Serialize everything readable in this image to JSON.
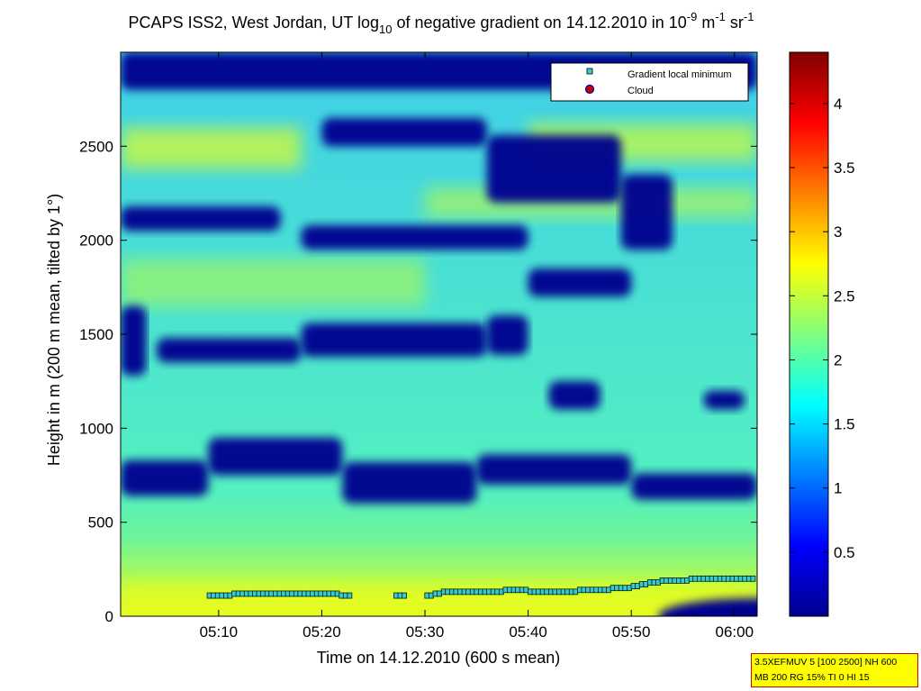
{
  "chart_data": {
    "type": "heatmap",
    "title": {
      "prefix": "PCAPS ISS2, West Jordan, UT log",
      "log_base": "10",
      "middle": " of negative gradient on 14.12.2010 in 10",
      "exp1": "-9",
      "unit1": " m",
      "exp2": "-1",
      "unit2": " sr",
      "exp3": "-1"
    },
    "xlabel": "Time on 14.12.2010 (600 s mean)",
    "ylabel": "Height in m (200 m mean, tilted by 1°)",
    "xlim_minutes": [
      300.5,
      362.2
    ],
    "ylim": [
      0,
      3000
    ],
    "x_ticks": [
      {
        "value": 310,
        "label": "05:10"
      },
      {
        "value": 320,
        "label": "05:20"
      },
      {
        "value": 330,
        "label": "05:30"
      },
      {
        "value": 340,
        "label": "05:40"
      },
      {
        "value": 350,
        "label": "05:50"
      },
      {
        "value": 360,
        "label": "06:00"
      }
    ],
    "y_ticks": [
      0,
      500,
      1000,
      1500,
      2000,
      2500
    ],
    "colorbar": {
      "colormap": "jet",
      "clim": [
        0,
        4.4
      ],
      "ticks": [
        0.5,
        1,
        1.5,
        2,
        2.5,
        3,
        3.5,
        4
      ]
    },
    "legend": {
      "placement": "top-right",
      "entries": [
        {
          "label": "Gradient local minimum",
          "marker": "square",
          "color": "#33cccc"
        },
        {
          "label": "Cloud",
          "marker": "circle",
          "color": "#cc0000"
        }
      ]
    },
    "gradient_local_minimum": [
      {
        "segment": [
          [
            309.1,
            110
          ],
          [
            309.5,
            110
          ],
          [
            309.9,
            110
          ],
          [
            310.3,
            110
          ],
          [
            310.7,
            110
          ],
          [
            311.1,
            110
          ],
          [
            311.5,
            120
          ],
          [
            311.9,
            120
          ],
          [
            312.3,
            120
          ],
          [
            312.7,
            120
          ],
          [
            313.1,
            120
          ],
          [
            313.5,
            120
          ],
          [
            313.9,
            120
          ],
          [
            314.3,
            120
          ],
          [
            314.7,
            120
          ],
          [
            315.1,
            120
          ],
          [
            315.5,
            120
          ],
          [
            315.9,
            120
          ],
          [
            316.3,
            120
          ],
          [
            316.7,
            120
          ],
          [
            317.1,
            120
          ],
          [
            317.5,
            120
          ],
          [
            317.9,
            120
          ],
          [
            318.3,
            120
          ],
          [
            318.7,
            120
          ],
          [
            319.1,
            120
          ],
          [
            319.5,
            120
          ],
          [
            319.9,
            120
          ],
          [
            320.3,
            120
          ],
          [
            320.7,
            120
          ],
          [
            321.1,
            120
          ],
          [
            321.5,
            120
          ],
          [
            321.9,
            110
          ],
          [
            322.3,
            110
          ],
          [
            322.7,
            110
          ]
        ]
      },
      {
        "segment": [
          [
            327.2,
            110
          ],
          [
            327.6,
            110
          ],
          [
            328.0,
            110
          ]
        ]
      },
      {
        "segment": [
          [
            330.2,
            110
          ],
          [
            330.6,
            110
          ],
          [
            331.0,
            120
          ],
          [
            331.4,
            120
          ],
          [
            331.8,
            130
          ],
          [
            332.2,
            130
          ],
          [
            332.6,
            130
          ],
          [
            333.0,
            130
          ],
          [
            333.4,
            130
          ],
          [
            333.8,
            130
          ],
          [
            334.2,
            130
          ],
          [
            334.6,
            130
          ],
          [
            335.0,
            130
          ],
          [
            335.4,
            130
          ],
          [
            335.8,
            130
          ],
          [
            336.2,
            130
          ],
          [
            336.6,
            130
          ],
          [
            337.0,
            130
          ],
          [
            337.4,
            130
          ],
          [
            337.8,
            140
          ],
          [
            338.2,
            140
          ],
          [
            338.6,
            140
          ],
          [
            339.0,
            140
          ],
          [
            339.4,
            140
          ],
          [
            339.8,
            140
          ],
          [
            340.2,
            130
          ],
          [
            340.6,
            130
          ],
          [
            341.0,
            130
          ],
          [
            341.4,
            130
          ],
          [
            341.8,
            130
          ],
          [
            342.2,
            130
          ],
          [
            342.6,
            130
          ],
          [
            343.0,
            130
          ],
          [
            343.4,
            130
          ],
          [
            343.8,
            130
          ],
          [
            344.2,
            130
          ],
          [
            344.6,
            130
          ],
          [
            345.0,
            140
          ],
          [
            345.4,
            140
          ],
          [
            345.8,
            140
          ],
          [
            346.2,
            140
          ],
          [
            346.6,
            140
          ],
          [
            347.0,
            140
          ],
          [
            347.4,
            140
          ],
          [
            347.8,
            140
          ],
          [
            348.2,
            150
          ],
          [
            348.6,
            150
          ],
          [
            349.0,
            150
          ],
          [
            349.4,
            150
          ],
          [
            349.8,
            150
          ],
          [
            350.2,
            160
          ],
          [
            350.6,
            160
          ],
          [
            351.0,
            170
          ],
          [
            351.4,
            170
          ],
          [
            351.8,
            180
          ],
          [
            352.2,
            180
          ],
          [
            352.6,
            180
          ],
          [
            353.0,
            190
          ],
          [
            353.4,
            190
          ],
          [
            353.8,
            190
          ],
          [
            354.2,
            190
          ],
          [
            354.6,
            190
          ],
          [
            355.0,
            190
          ],
          [
            355.4,
            190
          ],
          [
            355.8,
            200
          ],
          [
            356.2,
            200
          ],
          [
            356.6,
            200
          ],
          [
            357.0,
            200
          ],
          [
            357.4,
            200
          ],
          [
            357.8,
            200
          ],
          [
            358.2,
            200
          ],
          [
            358.6,
            200
          ],
          [
            359.0,
            200
          ],
          [
            359.4,
            200
          ],
          [
            359.8,
            200
          ],
          [
            360.2,
            200
          ],
          [
            360.6,
            200
          ],
          [
            361.0,
            200
          ],
          [
            361.4,
            200
          ],
          [
            361.8,
            200
          ]
        ]
      }
    ],
    "dense_layers_low_values": [
      {
        "t": [
          309,
          322
        ],
        "h": [
          750,
          950
        ]
      },
      {
        "t": [
          300.5,
          309
        ],
        "h": [
          640,
          830
        ]
      },
      {
        "t": [
          322,
          335
        ],
        "h": [
          600,
          820
        ]
      },
      {
        "t": [
          335,
          350
        ],
        "h": [
          700,
          860
        ]
      },
      {
        "t": [
          350,
          362.2
        ],
        "h": [
          620,
          760
        ]
      },
      {
        "t": [
          300.5,
          303
        ],
        "h": [
          1280,
          1650
        ]
      },
      {
        "t": [
          304,
          318
        ],
        "h": [
          1350,
          1480
        ]
      },
      {
        "t": [
          318,
          336
        ],
        "h": [
          1380,
          1560
        ]
      },
      {
        "t": [
          336,
          340
        ],
        "h": [
          1390,
          1600
        ]
      },
      {
        "t": [
          342,
          347
        ],
        "h": [
          1100,
          1250
        ]
      },
      {
        "t": [
          357,
          361
        ],
        "h": [
          1100,
          1200
        ]
      },
      {
        "t": [
          300.5,
          316
        ],
        "h": [
          2050,
          2180
        ]
      },
      {
        "t": [
          318,
          340
        ],
        "h": [
          1950,
          2080
        ]
      },
      {
        "t": [
          340,
          350
        ],
        "h": [
          1700,
          1850
        ]
      },
      {
        "t": [
          320,
          336
        ],
        "h": [
          2500,
          2650
        ]
      },
      {
        "t": [
          300.5,
          362.2
        ],
        "h": [
          2800,
          3000
        ]
      },
      {
        "t": [
          336,
          349
        ],
        "h": [
          2200,
          2560
        ]
      },
      {
        "t": [
          349,
          354
        ],
        "h": [
          1950,
          2350
        ]
      }
    ]
  },
  "info_box": {
    "line1": "3.5XEFMUV 5 [100 2500] NH 600",
    "line2": "MB 200 RG 15% TI 0 HI 15"
  }
}
